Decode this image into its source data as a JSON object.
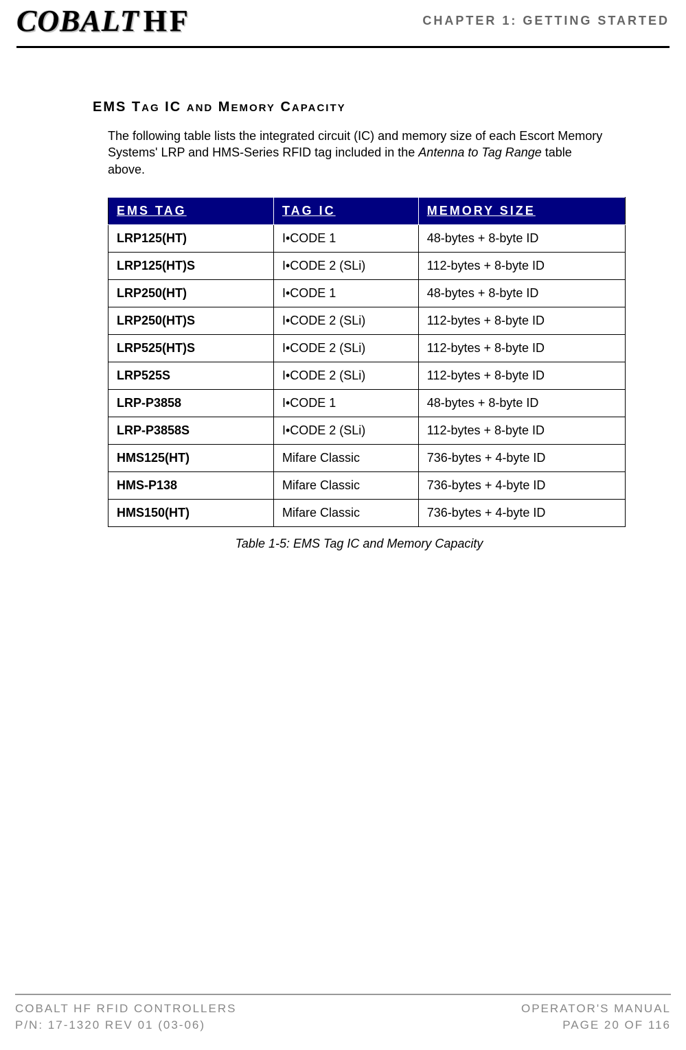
{
  "header": {
    "logo_main": "COBALT",
    "logo_suffix": "HF",
    "chapter": "CHAPTER 1: GETTING STARTED"
  },
  "section": {
    "title_parts": [
      {
        "text": "EMS T",
        "size": "main"
      },
      {
        "text": "AG",
        "size": "small"
      },
      {
        "text": " IC ",
        "size": "main"
      },
      {
        "text": "AND",
        "size": "small"
      },
      {
        "text": " M",
        "size": "main"
      },
      {
        "text": "EMORY",
        "size": "small"
      },
      {
        "text": " C",
        "size": "main"
      },
      {
        "text": "APACITY",
        "size": "small"
      }
    ],
    "intro_pre": "The following table lists the integrated circuit (IC) and memory size of each Escort Memory Systems' LRP and HMS-Series RFID tag included in the ",
    "intro_italic": "Antenna to Tag Range",
    "intro_post": " table above."
  },
  "table": {
    "columns": [
      "EMS TAG",
      "TAG IC",
      "MEMORY SIZE"
    ],
    "col_widths": [
      "32%",
      "28%",
      "40%"
    ],
    "header_bg": "#000080",
    "header_fg": "#ffffff",
    "border_color": "#000000",
    "font_size": 18,
    "rows": [
      [
        "LRP125(HT)",
        "I•CODE 1",
        "48-bytes + 8-byte ID"
      ],
      [
        "LRP125(HT)S",
        "I•CODE 2 (SLi)",
        "112-bytes + 8-byte ID"
      ],
      [
        "LRP250(HT)",
        "I•CODE 1",
        "48-bytes + 8-byte ID"
      ],
      [
        "LRP250(HT)S",
        "I•CODE 2 (SLi)",
        "112-bytes + 8-byte ID"
      ],
      [
        "LRP525(HT)S",
        "I•CODE 2 (SLi)",
        "112-bytes + 8-byte ID"
      ],
      [
        "LRP525S",
        "I•CODE 2 (SLi)",
        "112-bytes + 8-byte ID"
      ],
      [
        "LRP-P3858",
        "I•CODE 1",
        "48-bytes + 8-byte ID"
      ],
      [
        "LRP-P3858S",
        "I•CODE 2 (SLi)",
        "112-bytes + 8-byte ID"
      ],
      [
        "HMS125(HT)",
        "Mifare Classic",
        "736-bytes + 4-byte ID"
      ],
      [
        "HMS-P138",
        "Mifare Classic",
        "736-bytes + 4-byte ID"
      ],
      [
        "HMS150(HT)",
        "Mifare Classic",
        "736-bytes + 4-byte ID"
      ]
    ]
  },
  "caption": "Table 1-5: EMS Tag IC and Memory Capacity",
  "footer": {
    "left1": "COBALT HF RFID CONTROLLERS",
    "left2": "P/N: 17-1320 REV 01 (03-06)",
    "right1": "OPERATOR'S MANUAL",
    "right2": "PAGE 20 OF 116"
  }
}
